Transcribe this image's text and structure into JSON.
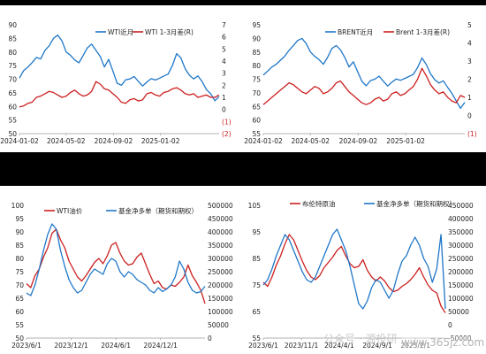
{
  "colors": {
    "blue": "#1F77C8",
    "red": "#CC1F1F",
    "neg": "#CC1F1F",
    "frame": "#000000"
  },
  "watermark": {
    "brand": "公众号 · 源投研",
    "url": "www.365jz.com"
  },
  "chart_data": [
    {
      "type": "line",
      "panel": "top-left",
      "x_start": "2024-01-02",
      "x_end": "2025-06-03",
      "xticks": [
        "2024-01-02",
        "2024-05-02",
        "2024-09-02",
        "2025-01-02"
      ],
      "ylim": [
        50,
        90
      ],
      "yticks": [
        "90",
        "85",
        "80",
        "75",
        "70",
        "65",
        "60",
        "55",
        "50"
      ],
      "ylim_right": [
        -2,
        7
      ],
      "yticks_right": [
        "7",
        "6",
        "5",
        "4",
        "3",
        "2",
        "1",
        "0",
        "(1)",
        "(2)"
      ],
      "legend_position": "top",
      "series": [
        {
          "name": "WTI近月",
          "axis": "left",
          "color": "#1F77C8",
          "values": [
            70.4,
            73.2,
            74.5,
            76.1,
            78.0,
            77.4,
            80.6,
            82.3,
            85.0,
            86.2,
            84.1,
            80.0,
            78.8,
            77.1,
            76.0,
            78.7,
            81.5,
            82.9,
            80.6,
            78.4,
            74.5,
            77.3,
            73.0,
            68.5,
            67.8,
            69.8,
            70.1,
            71.0,
            69.2,
            67.5,
            69.0,
            70.2,
            69.7,
            70.4,
            71.2,
            71.9,
            75.0,
            79.4,
            77.8,
            73.9,
            71.5,
            70.1,
            71.2,
            69.1,
            66.2,
            64.7,
            62.1,
            63.6
          ]
        },
        {
          "name": "WTI 1-3月差(R)",
          "axis": "right",
          "color": "#CC1F1F",
          "values": [
            0.2,
            0.3,
            0.5,
            0.6,
            1.0,
            1.1,
            1.3,
            1.5,
            1.4,
            1.2,
            1.0,
            1.1,
            1.4,
            1.6,
            1.3,
            1.1,
            1.2,
            1.5,
            2.3,
            2.1,
            1.7,
            1.6,
            1.3,
            1.0,
            0.6,
            0.5,
            0.8,
            0.9,
            0.7,
            0.8,
            1.3,
            1.4,
            1.2,
            1.1,
            1.4,
            1.5,
            1.7,
            1.8,
            1.6,
            1.3,
            1.2,
            1.3,
            1.0,
            1.1,
            1.2,
            1.0,
            1.0,
            1.2
          ]
        }
      ]
    },
    {
      "type": "line",
      "panel": "top-right",
      "x_start": "2024-01-02",
      "x_end": "2025-06-03",
      "xticks": [
        "2024-01-02",
        "2024-05-02",
        "2024-09-02",
        "2025-01-02"
      ],
      "ylim": [
        55,
        95
      ],
      "yticks": [
        "95",
        "90",
        "85",
        "80",
        "75",
        "70",
        "65",
        "60",
        "55"
      ],
      "ylim_right": [
        -1,
        5
      ],
      "yticks_right": [
        "5",
        "4",
        "3",
        "2",
        "1",
        "0",
        "(1)"
      ],
      "legend_position": "top",
      "series": [
        {
          "name": "BRENT近月",
          "axis": "left",
          "color": "#1F77C8",
          "values": [
            76.5,
            78.0,
            79.5,
            80.5,
            82.0,
            83.5,
            85.6,
            87.4,
            89.2,
            90.0,
            88.1,
            85.0,
            83.4,
            82.2,
            80.5,
            83.1,
            86.3,
            87.4,
            85.8,
            83.0,
            79.5,
            81.4,
            77.8,
            74.2,
            72.6,
            74.5,
            75.0,
            76.1,
            74.3,
            72.5,
            73.9,
            75.1,
            74.6,
            75.3,
            76.0,
            76.8,
            79.3,
            82.8,
            80.5,
            77.0,
            74.8,
            73.6,
            74.4,
            72.0,
            69.8,
            67.0,
            64.3,
            66.5
          ]
        },
        {
          "name": "Brent 1-3月差(R)",
          "axis": "right",
          "color": "#CC1F1F",
          "values": [
            0.6,
            0.8,
            1.0,
            1.2,
            1.4,
            1.6,
            1.8,
            1.7,
            1.5,
            1.3,
            1.2,
            1.4,
            1.6,
            1.5,
            1.2,
            1.3,
            1.5,
            1.8,
            1.9,
            1.6,
            1.3,
            1.1,
            0.9,
            0.7,
            0.6,
            0.7,
            0.9,
            1.0,
            0.8,
            0.9,
            1.2,
            1.3,
            1.1,
            1.2,
            1.4,
            1.6,
            2.0,
            2.6,
            2.2,
            1.7,
            1.4,
            1.2,
            1.3,
            1.0,
            0.8,
            0.7,
            1.1,
            1.0
          ]
        }
      ]
    },
    {
      "type": "line",
      "panel": "bottom-left",
      "x_start": "2023-06-01",
      "x_end": "2025-06-01",
      "xticks": [
        "2023/6/1",
        "2023/12/1",
        "2024/6/1",
        "2024/12/1"
      ],
      "ylim": [
        50,
        100
      ],
      "yticks": [
        "100",
        "95",
        "90",
        "85",
        "80",
        "75",
        "70",
        "65",
        "60",
        "55",
        "50"
      ],
      "ylim_right": [
        0,
        500000
      ],
      "yticks_right": [
        "500000",
        "450000",
        "400000",
        "350000",
        "300000",
        "250000",
        "200000",
        "150000",
        "100000",
        "50000",
        "0"
      ],
      "legend_position": "top",
      "series": [
        {
          "name": "WTI油价",
          "axis": "left",
          "color": "#CC1F1F",
          "values": [
            70.5,
            69.0,
            73.5,
            76.0,
            80.5,
            84.0,
            89.5,
            91.0,
            87.0,
            84.0,
            79.0,
            76.0,
            73.0,
            71.5,
            73.5,
            76.0,
            78.5,
            80.0,
            78.0,
            81.0,
            85.0,
            86.0,
            82.0,
            79.0,
            77.5,
            78.0,
            80.5,
            82.0,
            78.0,
            74.0,
            70.5,
            71.5,
            69.0,
            68.5,
            70.0,
            69.5,
            71.0,
            73.0,
            77.5,
            73.5,
            71.0,
            68.0,
            63.0
          ]
        },
        {
          "name": "基金净多单（期货和期权）",
          "axis": "right",
          "color": "#1F77C8",
          "values": [
            170000,
            160000,
            200000,
            260000,
            330000,
            390000,
            430000,
            410000,
            330000,
            270000,
            220000,
            190000,
            170000,
            180000,
            210000,
            240000,
            260000,
            250000,
            240000,
            280000,
            300000,
            290000,
            250000,
            230000,
            250000,
            240000,
            220000,
            210000,
            200000,
            180000,
            170000,
            190000,
            175000,
            185000,
            200000,
            230000,
            290000,
            260000,
            210000,
            180000,
            170000,
            175000,
            195000
          ]
        }
      ]
    },
    {
      "type": "line",
      "panel": "bottom-right",
      "x_start": "2023-06-01",
      "x_end": "2025-06-01",
      "xticks": [
        "2023/6/1",
        "2023/11/1",
        "2024/4/1",
        "2024/9/1",
        "2025/2/1"
      ],
      "ylim": [
        55,
        105
      ],
      "yticks": [
        "105",
        "95",
        "85",
        "75",
        "65",
        "55"
      ],
      "ylim_right": [
        -50000,
        450000
      ],
      "yticks_right": [
        "450000",
        "400000",
        "350000",
        "300000",
        "250000",
        "200000",
        "150000",
        "100000",
        "50000",
        "0",
        "-50000"
      ],
      "legend_position": "top",
      "series": [
        {
          "name": "布伦特原油",
          "axis": "left",
          "color": "#CC1F1F",
          "values": [
            76.0,
            74.5,
            78.0,
            82.5,
            86.0,
            90.5,
            94.0,
            92.0,
            88.0,
            84.0,
            80.5,
            78.0,
            77.0,
            78.5,
            81.5,
            83.5,
            85.5,
            88.0,
            89.5,
            86.0,
            83.0,
            81.5,
            82.0,
            84.5,
            80.5,
            78.0,
            76.5,
            78.0,
            76.5,
            74.0,
            72.5,
            73.0,
            74.5,
            75.5,
            77.0,
            79.0,
            81.5,
            78.0,
            75.0,
            73.0,
            72.0,
            67.0,
            64.5
          ]
        },
        {
          "name": "基金净多单（期货和期权）",
          "axis": "right",
          "color": "#1F77C8",
          "values": [
            150000,
            170000,
            210000,
            260000,
            300000,
            340000,
            320000,
            280000,
            240000,
            200000,
            170000,
            160000,
            180000,
            220000,
            260000,
            300000,
            340000,
            360000,
            320000,
            280000,
            220000,
            150000,
            80000,
            60000,
            90000,
            140000,
            170000,
            160000,
            130000,
            100000,
            130000,
            190000,
            240000,
            260000,
            300000,
            330000,
            300000,
            250000,
            220000,
            160000,
            210000,
            340000,
            60000
          ]
        }
      ]
    }
  ]
}
